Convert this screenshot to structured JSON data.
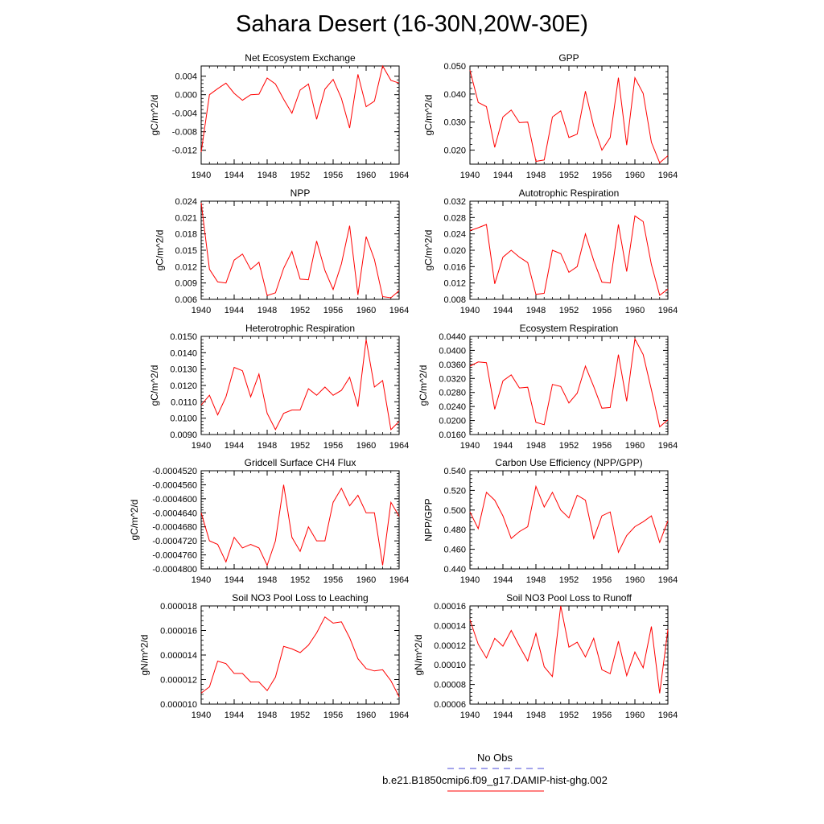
{
  "title": "Sahara Desert (16-30N,20W-30E)",
  "legend": {
    "obs_label": "No Obs",
    "obs_color": "#4a4ad8",
    "model_label": "b.e21.B1850cmip6.f09_g17.DAMIP-hist-ghg.002",
    "model_color": "#ff0000"
  },
  "chart_data": [
    {
      "type": "line",
      "title": "Net Ecosystem Exchange",
      "ylabel": "gC/m^2/d",
      "x": [
        1940,
        1941,
        1942,
        1943,
        1944,
        1945,
        1946,
        1947,
        1948,
        1949,
        1950,
        1951,
        1952,
        1953,
        1954,
        1955,
        1956,
        1957,
        1958,
        1959,
        1960,
        1961,
        1962,
        1963,
        1964
      ],
      "values": [
        -0.0124,
        0.0,
        0.0013,
        0.0025,
        0.0003,
        -0.0012,
        0.0,
        0.0001,
        0.0036,
        0.0023,
        -0.001,
        -0.004,
        0.001,
        0.0023,
        -0.0053,
        0.0012,
        0.0033,
        -0.0008,
        -0.0072,
        0.0044,
        -0.0026,
        -0.0014,
        0.0062,
        0.0031,
        0.0025
      ],
      "xlim": [
        1940,
        1964
      ],
      "ylim": [
        -0.015,
        0.0062
      ],
      "xticks": [
        1940,
        1944,
        1948,
        1952,
        1956,
        1960,
        1964
      ],
      "yticks": [
        -0.012,
        -0.008,
        -0.004,
        0.0,
        0.004
      ],
      "ytick_labels": [
        "-0.012",
        "-0.008",
        "-0.004",
        "0.000",
        "0.004"
      ]
    },
    {
      "type": "line",
      "title": "GPP",
      "ylabel": "gC/m^2/d",
      "x": [
        1940,
        1941,
        1942,
        1943,
        1944,
        1945,
        1946,
        1947,
        1948,
        1949,
        1950,
        1951,
        1952,
        1953,
        1954,
        1955,
        1956,
        1957,
        1958,
        1959,
        1960,
        1961,
        1962,
        1963,
        1964
      ],
      "values": [
        0.0485,
        0.037,
        0.0355,
        0.021,
        0.0318,
        0.0343,
        0.0298,
        0.03,
        0.016,
        0.0165,
        0.0318,
        0.034,
        0.0245,
        0.0257,
        0.041,
        0.0285,
        0.02,
        0.0245,
        0.0458,
        0.0218,
        0.0458,
        0.0402,
        0.0228,
        0.0155,
        0.018
      ],
      "xlim": [
        1940,
        1964
      ],
      "ylim": [
        0.015,
        0.05
      ],
      "xticks": [
        1940,
        1944,
        1948,
        1952,
        1956,
        1960,
        1964
      ],
      "yticks": [
        0.02,
        0.03,
        0.04,
        0.05
      ],
      "ytick_labels": [
        "0.020",
        "0.030",
        "0.040",
        "0.050"
      ]
    },
    {
      "type": "line",
      "title": "NPP",
      "ylabel": "gC/m^2/d",
      "x": [
        1940,
        1941,
        1942,
        1943,
        1944,
        1945,
        1946,
        1947,
        1948,
        1949,
        1950,
        1951,
        1952,
        1953,
        1954,
        1955,
        1956,
        1957,
        1958,
        1959,
        1960,
        1961,
        1962,
        1963,
        1964
      ],
      "values": [
        0.0237,
        0.0115,
        0.0092,
        0.009,
        0.0132,
        0.0143,
        0.0115,
        0.0128,
        0.0067,
        0.0072,
        0.0117,
        0.0148,
        0.0097,
        0.0096,
        0.0167,
        0.0113,
        0.0078,
        0.0125,
        0.0195,
        0.0068,
        0.0175,
        0.0133,
        0.0065,
        0.0063,
        0.0076
      ],
      "xlim": [
        1940,
        1964
      ],
      "ylim": [
        0.006,
        0.024
      ],
      "xticks": [
        1940,
        1944,
        1948,
        1952,
        1956,
        1960,
        1964
      ],
      "yticks": [
        0.006,
        0.009,
        0.012,
        0.015,
        0.018,
        0.021,
        0.024
      ],
      "ytick_labels": [
        "0.006",
        "0.009",
        "0.012",
        "0.015",
        "0.018",
        "0.021",
        "0.024"
      ]
    },
    {
      "type": "line",
      "title": "Autotrophic Respiration",
      "ylabel": "gC/m^2/d",
      "x": [
        1940,
        1941,
        1942,
        1943,
        1944,
        1945,
        1946,
        1947,
        1948,
        1949,
        1950,
        1951,
        1952,
        1953,
        1954,
        1955,
        1956,
        1957,
        1958,
        1959,
        1960,
        1961,
        1962,
        1963,
        1964
      ],
      "values": [
        0.0248,
        0.0255,
        0.0263,
        0.0118,
        0.0183,
        0.02,
        0.0183,
        0.017,
        0.0092,
        0.0095,
        0.02,
        0.0192,
        0.0146,
        0.016,
        0.024,
        0.0175,
        0.0122,
        0.012,
        0.0263,
        0.0148,
        0.0284,
        0.027,
        0.0165,
        0.009,
        0.0105
      ],
      "xlim": [
        1940,
        1964
      ],
      "ylim": [
        0.008,
        0.032
      ],
      "xticks": [
        1940,
        1944,
        1948,
        1952,
        1956,
        1960,
        1964
      ],
      "yticks": [
        0.008,
        0.012,
        0.016,
        0.02,
        0.024,
        0.028,
        0.032
      ],
      "ytick_labels": [
        "0.008",
        "0.012",
        "0.016",
        "0.020",
        "0.024",
        "0.028",
        "0.032"
      ]
    },
    {
      "type": "line",
      "title": "Heterotrophic Respiration",
      "ylabel": "gC/m^2/d",
      "x": [
        1940,
        1941,
        1942,
        1943,
        1944,
        1945,
        1946,
        1947,
        1948,
        1949,
        1950,
        1951,
        1952,
        1953,
        1954,
        1955,
        1956,
        1957,
        1958,
        1959,
        1960,
        1961,
        1962,
        1963,
        1964
      ],
      "values": [
        0.0108,
        0.0114,
        0.0102,
        0.0113,
        0.0131,
        0.0129,
        0.0113,
        0.0127,
        0.0103,
        0.0093,
        0.0103,
        0.0105,
        0.0105,
        0.0118,
        0.0114,
        0.0119,
        0.0114,
        0.0117,
        0.0125,
        0.0107,
        0.0148,
        0.0119,
        0.0123,
        0.0093,
        0.0098
      ],
      "xlim": [
        1940,
        1964
      ],
      "ylim": [
        0.009,
        0.015
      ],
      "xticks": [
        1940,
        1944,
        1948,
        1952,
        1956,
        1960,
        1964
      ],
      "yticks": [
        0.009,
        0.01,
        0.011,
        0.012,
        0.013,
        0.014,
        0.015
      ],
      "ytick_labels": [
        "0.0090",
        "0.0100",
        "0.0110",
        "0.0120",
        "0.0130",
        "0.0140",
        "0.0150"
      ]
    },
    {
      "type": "line",
      "title": "Ecosystem Respiration",
      "ylabel": "gC/m^2/d",
      "x": [
        1940,
        1941,
        1942,
        1943,
        1944,
        1945,
        1946,
        1947,
        1948,
        1949,
        1950,
        1951,
        1952,
        1953,
        1954,
        1955,
        1956,
        1957,
        1958,
        1959,
        1960,
        1961,
        1962,
        1963,
        1964
      ],
      "values": [
        0.0355,
        0.0367,
        0.0365,
        0.0232,
        0.0313,
        0.033,
        0.0293,
        0.0295,
        0.0195,
        0.0188,
        0.0303,
        0.0297,
        0.025,
        0.0278,
        0.0355,
        0.0297,
        0.0235,
        0.0237,
        0.0388,
        0.0255,
        0.0433,
        0.0388,
        0.0288,
        0.0182,
        0.0202
      ],
      "xlim": [
        1940,
        1964
      ],
      "ylim": [
        0.016,
        0.044
      ],
      "xticks": [
        1940,
        1944,
        1948,
        1952,
        1956,
        1960,
        1964
      ],
      "yticks": [
        0.016,
        0.02,
        0.024,
        0.028,
        0.032,
        0.036,
        0.04,
        0.044
      ],
      "ytick_labels": [
        "0.0160",
        "0.0200",
        "0.0240",
        "0.0280",
        "0.0320",
        "0.0360",
        "0.0400",
        "0.0440"
      ]
    },
    {
      "type": "line",
      "title": "Gridcell Surface CH4 Flux",
      "ylabel": "gC/m^2/d",
      "x": [
        1940,
        1941,
        1942,
        1943,
        1944,
        1945,
        1946,
        1947,
        1948,
        1949,
        1950,
        1951,
        1952,
        1953,
        1954,
        1955,
        1956,
        1957,
        1958,
        1959,
        1960,
        1961,
        1962,
        1963,
        1964
      ],
      "values": [
        -0.000464,
        -0.000472,
        -0.000473,
        -0.000478,
        -0.000471,
        -0.000474,
        -0.000473,
        -0.000474,
        -0.000479,
        -0.000472,
        -0.000456,
        -0.000471,
        -0.000475,
        -0.000468,
        -0.000472,
        -0.000472,
        -0.000461,
        -0.000457,
        -0.000462,
        -0.000459,
        -0.000464,
        -0.000464,
        -0.000479,
        -0.000461,
        -0.000465
      ],
      "xlim": [
        1940,
        1964
      ],
      "ylim": [
        -0.00048,
        -0.000452
      ],
      "xticks": [
        1940,
        1944,
        1948,
        1952,
        1956,
        1960,
        1964
      ],
      "yticks": [
        -0.00048,
        -0.000476,
        -0.000472,
        -0.000468,
        -0.000464,
        -0.00046,
        -0.000456,
        -0.000452
      ],
      "ytick_labels": [
        "-0.0004800",
        "-0.0004760",
        "-0.0004720",
        "-0.0004680",
        "-0.0004640",
        "-0.0004600",
        "-0.0004560",
        "-0.0004520"
      ]
    },
    {
      "type": "line",
      "title": "Carbon Use Efficiency (NPP/GPP)",
      "ylabel": "NPP/GPP",
      "x": [
        1940,
        1941,
        1942,
        1943,
        1944,
        1945,
        1946,
        1947,
        1948,
        1949,
        1950,
        1951,
        1952,
        1953,
        1954,
        1955,
        1956,
        1957,
        1958,
        1959,
        1960,
        1961,
        1962,
        1963,
        1964
      ],
      "values": [
        0.498,
        0.481,
        0.518,
        0.51,
        0.494,
        0.471,
        0.478,
        0.483,
        0.524,
        0.503,
        0.518,
        0.5,
        0.492,
        0.515,
        0.51,
        0.471,
        0.494,
        0.498,
        0.457,
        0.474,
        0.483,
        0.488,
        0.494,
        0.467,
        0.489
      ],
      "xlim": [
        1940,
        1964
      ],
      "ylim": [
        0.44,
        0.54
      ],
      "xticks": [
        1940,
        1944,
        1948,
        1952,
        1956,
        1960,
        1964
      ],
      "yticks": [
        0.44,
        0.46,
        0.48,
        0.5,
        0.52,
        0.54
      ],
      "ytick_labels": [
        "0.440",
        "0.460",
        "0.480",
        "0.500",
        "0.520",
        "0.540"
      ]
    },
    {
      "type": "line",
      "title": "Soil NO3 Pool Loss to Leaching",
      "ylabel": "gN/m^2/d",
      "x": [
        1940,
        1941,
        1942,
        1943,
        1944,
        1945,
        1946,
        1947,
        1948,
        1949,
        1950,
        1951,
        1952,
        1953,
        1954,
        1955,
        1956,
        1957,
        1958,
        1959,
        1960,
        1961,
        1962,
        1963,
        1964
      ],
      "values": [
        1.09e-05,
        1.14e-05,
        1.35e-05,
        1.33e-05,
        1.25e-05,
        1.25e-05,
        1.18e-05,
        1.18e-05,
        1.11e-05,
        1.22e-05,
        1.47e-05,
        1.45e-05,
        1.42e-05,
        1.48e-05,
        1.58e-05,
        1.71e-05,
        1.66e-05,
        1.67e-05,
        1.54e-05,
        1.37e-05,
        1.29e-05,
        1.27e-05,
        1.28e-05,
        1.19e-05,
        1.06e-05
      ],
      "xlim": [
        1940,
        1964
      ],
      "ylim": [
        1e-05,
        1.8e-05
      ],
      "xticks": [
        1940,
        1944,
        1948,
        1952,
        1956,
        1960,
        1964
      ],
      "yticks": [
        1e-05,
        1.2e-05,
        1.4e-05,
        1.6e-05,
        1.8e-05
      ],
      "ytick_labels": [
        "0.000010",
        "0.000012",
        "0.000014",
        "0.000016",
        "0.000018"
      ]
    },
    {
      "type": "line",
      "title": "Soil NO3 Pool Loss to Runoff",
      "ylabel": "gN/m^2/d",
      "x": [
        1940,
        1941,
        1942,
        1943,
        1944,
        1945,
        1946,
        1947,
        1948,
        1949,
        1950,
        1951,
        1952,
        1953,
        1954,
        1955,
        1956,
        1957,
        1958,
        1959,
        1960,
        1961,
        1962,
        1963,
        1964
      ],
      "values": [
        0.000146,
        0.000121,
        0.000107,
        0.000127,
        0.000119,
        0.000135,
        0.000119,
        0.000104,
        0.000132,
        9.8e-05,
        8.8e-05,
        0.00016,
        0.000118,
        0.000123,
        0.000108,
        0.000127,
        9.5e-05,
        9.1e-05,
        0.000124,
        8.9e-05,
        0.000113,
        9.7e-05,
        0.000139,
        7.1e-05,
        0.000136
      ],
      "xlim": [
        1940,
        1964
      ],
      "ylim": [
        6e-05,
        0.00016
      ],
      "xticks": [
        1940,
        1944,
        1948,
        1952,
        1956,
        1960,
        1964
      ],
      "yticks": [
        6e-05,
        8e-05,
        0.0001,
        0.00012,
        0.00014,
        0.00016
      ],
      "ytick_labels": [
        "0.00006",
        "0.00008",
        "0.00010",
        "0.00012",
        "0.00014",
        "0.00016"
      ]
    }
  ]
}
